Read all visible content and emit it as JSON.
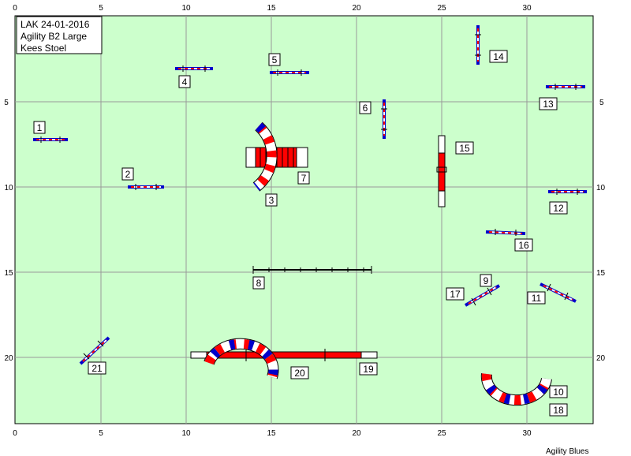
{
  "info": {
    "line1": "LAK 24-01-2016",
    "line2": "Agility B2 Large",
    "line3": "Kees Stoel"
  },
  "footer": "Agility Blues",
  "axes": {
    "x_ticks": [
      "0",
      "5",
      "10",
      "15",
      "20",
      "25",
      "30"
    ],
    "y_ticks": [
      "5",
      "10",
      "15",
      "20"
    ]
  },
  "obstacle_labels": [
    "1",
    "2",
    "3",
    "4",
    "5",
    "6",
    "7",
    "8",
    "9",
    "10",
    "11",
    "12",
    "13",
    "14",
    "15",
    "16",
    "17",
    "18",
    "19",
    "20",
    "21"
  ],
  "colors": {
    "field": "#ccffcc",
    "grid": "#999999",
    "bar_red": "#ff0000",
    "bar_blue": "#0000cc"
  }
}
